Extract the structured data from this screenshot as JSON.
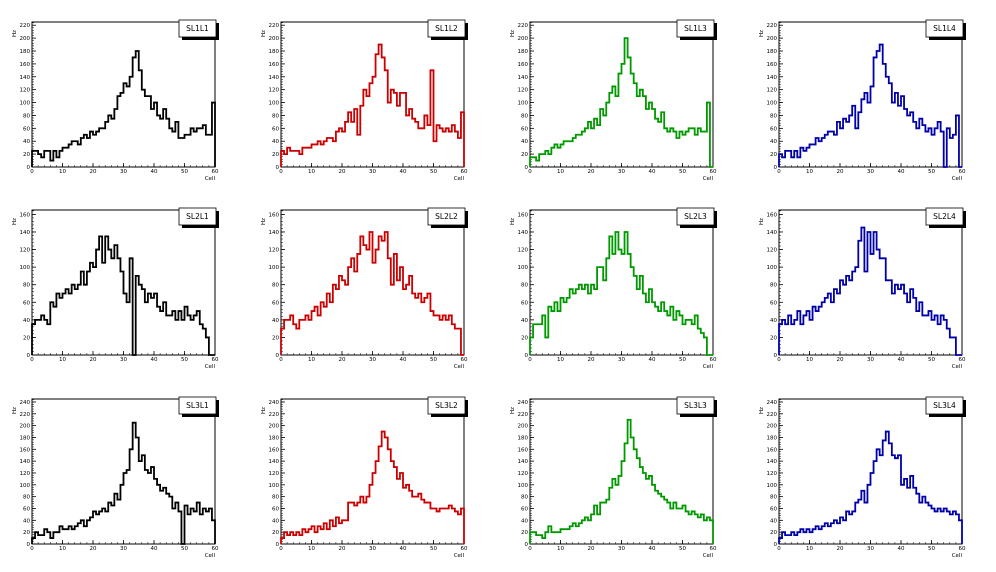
{
  "common": {
    "ylabel": "Hz",
    "xlabel": "Cell",
    "xticks": [
      "0",
      "10",
      "20",
      "30",
      "40",
      "50",
      "60"
    ]
  },
  "chart_data": [
    {
      "type": "line",
      "title": "SL1L1",
      "color": "#000000",
      "xlim": [
        0,
        60
      ],
      "ylim": [
        0,
        225
      ],
      "yticks": [
        "0",
        "20",
        "40",
        "60",
        "80",
        "100",
        "120",
        "140",
        "160",
        "180",
        "200",
        "220"
      ],
      "series": [
        {
          "values": [
            25,
            25,
            20,
            15,
            25,
            25,
            10,
            25,
            15,
            25,
            30,
            30,
            35,
            40,
            40,
            35,
            45,
            50,
            45,
            55,
            50,
            55,
            60,
            60,
            70,
            80,
            75,
            90,
            110,
            115,
            130,
            125,
            140,
            170,
            180,
            150,
            120,
            110,
            110,
            90,
            100,
            80,
            75,
            90,
            75,
            60,
            55,
            70,
            45,
            45,
            50,
            50,
            60,
            55,
            60,
            60,
            65,
            50,
            50,
            100
          ]
        }
      ]
    },
    {
      "type": "line",
      "title": "SL1L2",
      "color": "#cc0000",
      "xlim": [
        0,
        60
      ],
      "ylim": [
        0,
        225
      ],
      "yticks": [
        "0",
        "20",
        "40",
        "60",
        "80",
        "100",
        "120",
        "140",
        "160",
        "180",
        "200",
        "220"
      ],
      "series": [
        {
          "values": [
            25,
            20,
            30,
            25,
            25,
            25,
            20,
            30,
            30,
            30,
            35,
            35,
            40,
            35,
            40,
            45,
            45,
            40,
            55,
            60,
            55,
            70,
            85,
            70,
            90,
            50,
            95,
            120,
            110,
            130,
            140,
            175,
            190,
            170,
            150,
            100,
            120,
            115,
            95,
            115,
            115,
            80,
            90,
            75,
            70,
            60,
            60,
            80,
            65,
            150,
            40,
            65,
            60,
            55,
            60,
            55,
            65,
            55,
            45,
            85
          ]
        }
      ]
    },
    {
      "type": "line",
      "title": "SL1L3",
      "color": "#009900",
      "xlim": [
        0,
        60
      ],
      "ylim": [
        0,
        225
      ],
      "yticks": [
        "0",
        "20",
        "40",
        "60",
        "80",
        "100",
        "120",
        "140",
        "160",
        "180",
        "200",
        "220"
      ],
      "series": [
        {
          "values": [
            15,
            15,
            10,
            20,
            20,
            25,
            20,
            30,
            35,
            30,
            35,
            40,
            40,
            40,
            45,
            50,
            50,
            55,
            60,
            70,
            60,
            75,
            65,
            90,
            80,
            100,
            115,
            125,
            110,
            145,
            160,
            200,
            170,
            145,
            130,
            110,
            120,
            110,
            90,
            100,
            90,
            75,
            70,
            85,
            60,
            55,
            60,
            55,
            45,
            55,
            50,
            55,
            60,
            60,
            50,
            60,
            55,
            55,
            100,
            0
          ]
        }
      ]
    },
    {
      "type": "line",
      "title": "SL1L4",
      "color": "#0000aa",
      "xlim": [
        0,
        60
      ],
      "ylim": [
        0,
        225
      ],
      "yticks": [
        "0",
        "20",
        "40",
        "60",
        "80",
        "100",
        "120",
        "140",
        "160",
        "180",
        "200",
        "220"
      ],
      "series": [
        {
          "values": [
            20,
            15,
            25,
            25,
            15,
            25,
            15,
            30,
            25,
            30,
            35,
            35,
            45,
            40,
            45,
            50,
            55,
            55,
            50,
            70,
            60,
            75,
            70,
            80,
            95,
            60,
            85,
            105,
            115,
            100,
            125,
            170,
            180,
            190,
            160,
            140,
            130,
            100,
            115,
            95,
            110,
            90,
            80,
            85,
            70,
            60,
            75,
            65,
            55,
            60,
            50,
            60,
            70,
            55,
            0,
            60,
            45,
            50,
            80,
            0
          ]
        }
      ]
    },
    {
      "type": "line",
      "title": "SL2L1",
      "color": "#000000",
      "xlim": [
        0,
        60
      ],
      "ylim": [
        0,
        165
      ],
      "yticks": [
        "0",
        "20",
        "40",
        "60",
        "80",
        "100",
        "120",
        "140",
        "160"
      ],
      "series": [
        {
          "values": [
            35,
            40,
            40,
            45,
            40,
            35,
            60,
            55,
            70,
            65,
            70,
            75,
            70,
            80,
            75,
            80,
            95,
            80,
            95,
            105,
            100,
            120,
            135,
            105,
            135,
            120,
            110,
            125,
            110,
            95,
            70,
            60,
            110,
            0,
            90,
            80,
            75,
            60,
            70,
            65,
            70,
            55,
            50,
            60,
            45,
            45,
            50,
            40,
            50,
            40,
            55,
            45,
            40,
            45,
            50,
            35,
            30,
            20,
            0,
            0
          ]
        }
      ]
    },
    {
      "type": "line",
      "title": "SL2L2",
      "color": "#cc0000",
      "xlim": [
        0,
        60
      ],
      "ylim": [
        0,
        165
      ],
      "yticks": [
        "0",
        "20",
        "40",
        "60",
        "80",
        "100",
        "120",
        "140",
        "160"
      ],
      "series": [
        {
          "values": [
            30,
            40,
            40,
            45,
            35,
            30,
            40,
            40,
            45,
            40,
            50,
            55,
            45,
            60,
            55,
            70,
            60,
            80,
            75,
            90,
            85,
            80,
            100,
            110,
            95,
            115,
            135,
            125,
            120,
            140,
            105,
            120,
            135,
            130,
            140,
            110,
            80,
            115,
            85,
            100,
            75,
            80,
            90,
            70,
            65,
            70,
            60,
            65,
            70,
            50,
            45,
            45,
            40,
            45,
            40,
            45,
            35,
            30,
            30,
            0
          ]
        }
      ]
    },
    {
      "type": "line",
      "title": "SL2L3",
      "color": "#009900",
      "xlim": [
        0,
        60
      ],
      "ylim": [
        0,
        165
      ],
      "yticks": [
        "0",
        "20",
        "40",
        "60",
        "80",
        "100",
        "120",
        "140",
        "160"
      ],
      "series": [
        {
          "values": [
            20,
            35,
            35,
            35,
            45,
            20,
            55,
            50,
            60,
            50,
            65,
            60,
            65,
            75,
            70,
            75,
            80,
            75,
            80,
            70,
            80,
            75,
            100,
            100,
            85,
            110,
            135,
            115,
            140,
            120,
            115,
            140,
            115,
            100,
            90,
            75,
            90,
            70,
            60,
            75,
            60,
            55,
            50,
            60,
            50,
            45,
            55,
            40,
            50,
            45,
            35,
            40,
            40,
            35,
            45,
            30,
            25,
            20,
            0,
            0
          ]
        }
      ]
    },
    {
      "type": "line",
      "title": "SL2L4",
      "color": "#0000aa",
      "xlim": [
        0,
        60
      ],
      "ylim": [
        0,
        165
      ],
      "yticks": [
        "0",
        "20",
        "40",
        "60",
        "80",
        "100",
        "120",
        "140",
        "160"
      ],
      "series": [
        {
          "values": [
            35,
            40,
            35,
            45,
            35,
            40,
            50,
            35,
            45,
            50,
            40,
            55,
            50,
            55,
            60,
            65,
            70,
            60,
            75,
            70,
            85,
            80,
            90,
            85,
            95,
            100,
            130,
            145,
            95,
            140,
            115,
            140,
            120,
            110,
            110,
            85,
            85,
            70,
            80,
            75,
            80,
            70,
            60,
            75,
            65,
            50,
            60,
            45,
            45,
            50,
            40,
            45,
            35,
            45,
            40,
            30,
            20,
            20,
            0,
            0
          ]
        }
      ]
    },
    {
      "type": "line",
      "title": "SL3L1",
      "color": "#000000",
      "xlim": [
        0,
        60
      ],
      "ylim": [
        0,
        245
      ],
      "yticks": [
        "0",
        "20",
        "40",
        "60",
        "80",
        "100",
        "120",
        "140",
        "160",
        "180",
        "200",
        "220",
        "240"
      ],
      "series": [
        {
          "values": [
            10,
            20,
            15,
            15,
            25,
            20,
            10,
            20,
            20,
            30,
            25,
            25,
            30,
            25,
            30,
            35,
            40,
            30,
            40,
            45,
            55,
            50,
            55,
            60,
            55,
            70,
            65,
            85,
            75,
            100,
            120,
            125,
            160,
            205,
            180,
            140,
            150,
            125,
            120,
            130,
            110,
            100,
            90,
            95,
            85,
            80,
            60,
            70,
            55,
            0,
            65,
            50,
            60,
            55,
            70,
            50,
            60,
            55,
            60,
            40
          ]
        }
      ]
    },
    {
      "type": "line",
      "title": "SL3L2",
      "color": "#cc0000",
      "xlim": [
        0,
        60
      ],
      "ylim": [
        0,
        245
      ],
      "yticks": [
        "0",
        "20",
        "40",
        "60",
        "80",
        "100",
        "120",
        "140",
        "160",
        "180",
        "200",
        "220",
        "240"
      ],
      "series": [
        {
          "values": [
            10,
            20,
            15,
            20,
            15,
            20,
            15,
            25,
            20,
            25,
            30,
            20,
            30,
            25,
            35,
            25,
            40,
            30,
            45,
            35,
            40,
            40,
            70,
            70,
            65,
            70,
            80,
            70,
            80,
            100,
            120,
            140,
            165,
            190,
            180,
            160,
            140,
            130,
            110,
            120,
            95,
            100,
            90,
            80,
            80,
            85,
            75,
            70,
            70,
            60,
            60,
            55,
            60,
            60,
            60,
            65,
            60,
            55,
            50,
            60
          ]
        }
      ]
    },
    {
      "type": "line",
      "title": "SL3L3",
      "color": "#009900",
      "xlim": [
        0,
        60
      ],
      "ylim": [
        0,
        245
      ],
      "yticks": [
        "0",
        "20",
        "40",
        "60",
        "80",
        "100",
        "120",
        "140",
        "160",
        "180",
        "200",
        "220",
        "240"
      ],
      "series": [
        {
          "values": [
            20,
            20,
            15,
            15,
            10,
            20,
            30,
            20,
            20,
            20,
            25,
            25,
            25,
            30,
            35,
            30,
            35,
            40,
            45,
            40,
            50,
            65,
            50,
            70,
            70,
            75,
            95,
            110,
            100,
            115,
            140,
            170,
            210,
            180,
            160,
            145,
            130,
            120,
            110,
            115,
            100,
            90,
            85,
            80,
            75,
            70,
            60,
            70,
            60,
            60,
            65,
            55,
            50,
            55,
            50,
            45,
            50,
            40,
            45,
            40
          ]
        }
      ]
    },
    {
      "type": "line",
      "title": "SL3L4",
      "color": "#0000aa",
      "xlim": [
        0,
        60
      ],
      "ylim": [
        0,
        245
      ],
      "yticks": [
        "0",
        "20",
        "40",
        "60",
        "80",
        "100",
        "120",
        "140",
        "160",
        "180",
        "200",
        "220",
        "240"
      ],
      "series": [
        {
          "values": [
            10,
            20,
            15,
            15,
            20,
            15,
            20,
            25,
            20,
            25,
            20,
            25,
            30,
            25,
            30,
            35,
            30,
            35,
            40,
            35,
            45,
            40,
            55,
            50,
            55,
            70,
            75,
            90,
            70,
            100,
            120,
            140,
            160,
            150,
            175,
            190,
            170,
            150,
            145,
            150,
            100,
            110,
            95,
            115,
            95,
            85,
            70,
            80,
            70,
            65,
            60,
            55,
            60,
            55,
            60,
            55,
            50,
            55,
            50,
            40
          ]
        }
      ]
    }
  ]
}
